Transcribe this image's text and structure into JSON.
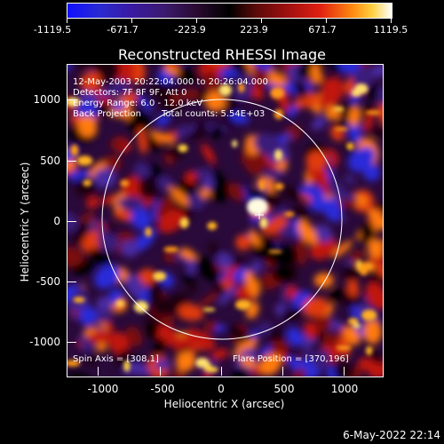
{
  "colorbar": {
    "ticks": [
      "-1119.5",
      "-671.7",
      "-223.9",
      "223.9",
      "671.7",
      "1119.5"
    ]
  },
  "title": "Reconstructed RHESSI Image",
  "annotations": {
    "time_range": "12-May-2003 20:22:04.000 to 20:26:04.000",
    "detectors": "Detectors: 7F 8F 9F, Att 0",
    "energy_range": "Energy Range: 6.0 - 12.0 keV",
    "method": "Back Projection",
    "total_counts": "Total counts: 5.54E+03",
    "spin_axis": "Spin Axis = [308,1]",
    "flare_position": "Flare Position = [370,196]"
  },
  "axes": {
    "xlabel": "Heliocentric X (arcsec)",
    "ylabel": "Heliocentric Y (arcsec)",
    "xticks": [
      "-1000",
      "-500",
      "0",
      "500",
      "1000"
    ],
    "yticks": [
      "1000",
      "500",
      "0",
      "-500",
      "-1000"
    ]
  },
  "datestamp": "6-May-2022 22:14",
  "colors": {
    "background": "#000000",
    "foreground": "#ffffff"
  }
}
